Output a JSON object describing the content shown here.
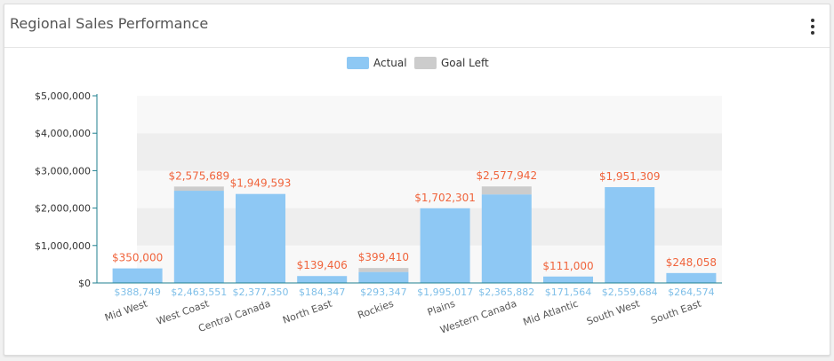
{
  "card": {
    "title": "Regional Sales Performance",
    "menu_icon": "more-vertical-icon"
  },
  "colors": {
    "actual": "#8ec8f4",
    "goal_left": "#cccccc",
    "goal_label": "#f0643c",
    "actual_label": "#7fbfe8",
    "axis": "#1f7f8f"
  },
  "chart_data": {
    "type": "bar",
    "title": "Regional Sales Performance",
    "legend": {
      "position": "top-center",
      "entries": [
        "Actual",
        "Goal Left"
      ]
    },
    "categories": [
      "Mid West",
      "West Coast",
      "Central Canada",
      "North East",
      "Rockies",
      "Plains",
      "Western Canada",
      "Mid Atlantic",
      "South West",
      "South East"
    ],
    "series": [
      {
        "name": "Actual",
        "values": [
          388749,
          2463551,
          2377350,
          184347,
          293347,
          1995017,
          2365882,
          171564,
          2559684,
          264574
        ],
        "labels": [
          "$388,749",
          "$2,463,551",
          "$2,377,350",
          "$184,347",
          "$293,347",
          "$1,995,017",
          "$2,365,882",
          "$171,564",
          "$2,559,684",
          "$264,574"
        ]
      },
      {
        "name": "Goal Left",
        "values": [
          350000,
          2575689,
          1949593,
          139406,
          399410,
          1702301,
          2577942,
          111000,
          1951309,
          248058
        ],
        "labels": [
          "$350,000",
          "$2,575,689",
          "$1,949,593",
          "$139,406",
          "$399,410",
          "$1,702,301",
          "$2,577,942",
          "$111,000",
          "$1,951,309",
          "$248,058"
        ]
      }
    ],
    "ylim": [
      0,
      5000000
    ],
    "yticks": [
      0,
      1000000,
      2000000,
      3000000,
      4000000,
      5000000
    ],
    "ytick_labels": [
      "$0",
      "$1,000,000",
      "$2,000,000",
      "$3,000,000",
      "$4,000,000",
      "$5,000,000"
    ],
    "grid": "alternating bands",
    "xlabel": "",
    "ylabel": ""
  }
}
